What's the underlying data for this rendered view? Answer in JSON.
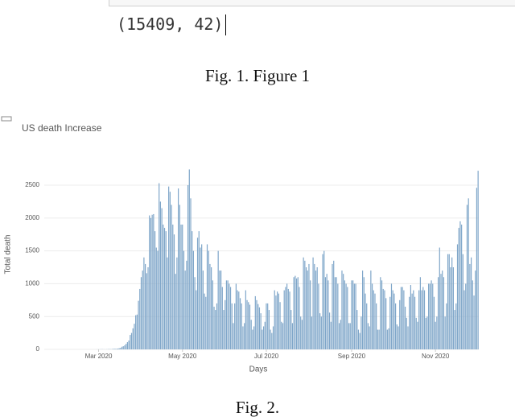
{
  "code_output": "(15409, 42)",
  "fig1_caption": "Fig. 1. Figure 1",
  "chart_data": {
    "type": "bar",
    "title": "US death Increase",
    "x_label": "Days",
    "y_label": "Total death",
    "color": "#7fa6c9",
    "grid": true,
    "xlim": [
      -0.5,
      315.5
    ],
    "xticks": [
      {
        "value": 39,
        "label": "Mar 2020"
      },
      {
        "value": 100,
        "label": "May 2020"
      },
      {
        "value": 161,
        "label": "Jul 2020"
      },
      {
        "value": 223,
        "label": "Sep 2020"
      },
      {
        "value": 284,
        "label": "Nov 2020"
      }
    ],
    "ylim": [
      0,
      2770
    ],
    "yticks": [
      0,
      500,
      1000,
      1500,
      2000,
      2500
    ],
    "values": [
      0,
      0,
      0,
      0,
      0,
      0,
      0,
      0,
      0,
      0,
      0,
      0,
      0,
      0,
      0,
      0,
      0,
      0,
      0,
      0,
      0,
      0,
      0,
      0,
      0,
      0,
      0,
      0,
      0,
      0,
      0,
      0,
      0,
      0,
      0,
      0,
      0,
      0,
      1,
      1,
      1,
      3,
      2,
      1,
      1,
      2,
      3,
      4,
      3,
      5,
      8,
      10,
      7,
      12,
      18,
      23,
      40,
      48,
      62,
      85,
      110,
      135,
      220,
      250,
      320,
      390,
      520,
      530,
      740,
      920,
      1100,
      1200,
      1400,
      1300,
      1160,
      1250,
      2040,
      2000,
      2050,
      2060,
      1800,
      1550,
      1500,
      2530,
      2250,
      2150,
      1900,
      1850,
      1800,
      1400,
      2480,
      2400,
      2200,
      1900,
      1750,
      1150,
      1400,
      2450,
      2200,
      1900,
      1900,
      1500,
      1200,
      1350,
      2500,
      2740,
      2300,
      1800,
      1500,
      1100,
      900,
      1700,
      1800,
      1550,
      1600,
      1200,
      850,
      800,
      1600,
      1500,
      1300,
      1250,
      1050,
      650,
      600,
      700,
      1500,
      1200,
      1200,
      950,
      600,
      750,
      1050,
      1050,
      1000,
      950,
      700,
      400,
      700,
      1000,
      900,
      880,
      780,
      700,
      350,
      400,
      900,
      750,
      720,
      680,
      450,
      300,
      350,
      810,
      750,
      690,
      640,
      550,
      300,
      350,
      420,
      700,
      700,
      600,
      300,
      250,
      350,
      900,
      820,
      880,
      850,
      720,
      420,
      400,
      900,
      950,
      1000,
      920,
      880,
      600,
      400,
      1100,
      1120,
      1080,
      1100,
      950,
      500,
      450,
      1400,
      1350,
      1250,
      1200,
      1300,
      1050,
      500,
      1400,
      1300,
      1200,
      1250,
      1000,
      550,
      500,
      1450,
      1500,
      1100,
      1150,
      1050,
      560,
      420,
      1300,
      1350,
      1100,
      1100,
      1000,
      400,
      450,
      1200,
      1150,
      1050,
      1000,
      950,
      400,
      400,
      1050,
      1050,
      1000,
      1000,
      600,
      300,
      250,
      500,
      1200,
      1100,
      850,
      700,
      400,
      350,
      1200,
      1000,
      900,
      850,
      700,
      300,
      300,
      1100,
      1050,
      920,
      900,
      780,
      300,
      320,
      800,
      1000,
      900,
      850,
      700,
      380,
      350,
      750,
      950,
      950,
      900,
      650,
      480,
      350,
      800,
      980,
      850,
      900,
      800,
      480,
      420,
      900,
      1100,
      900,
      950,
      900,
      480,
      500,
      1000,
      1000,
      1050,
      1000,
      800,
      420,
      500,
      1100,
      1550,
      1150,
      1200,
      1100,
      500,
      700,
      1450,
      1450,
      1250,
      1400,
      1250,
      600,
      700,
      1600,
      1850,
      1950,
      1900,
      1450,
      900,
      1000,
      2200,
      2300,
      1300,
      1400,
      1050,
      820,
      1200,
      2460,
      2720
    ]
  },
  "fig2_caption": "Fig. 2."
}
